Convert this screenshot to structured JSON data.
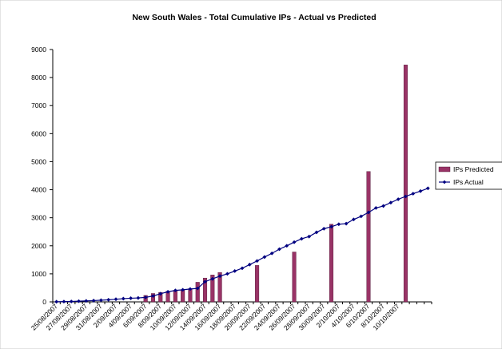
{
  "chart_data": {
    "type": "bar",
    "title": "New South Wales - Total Cumulative IPs - Actual vs Predicted",
    "xlabel": "",
    "ylabel": "",
    "ylim": [
      0,
      9000
    ],
    "yticks": [
      0,
      1000,
      2000,
      3000,
      4000,
      5000,
      6000,
      7000,
      8000,
      9000
    ],
    "grid": false,
    "legend_position": "right",
    "x_start": "25/08/2007",
    "x_labels": [
      "25/08/2007",
      "27/08/2007",
      "29/08/2007",
      "31/08/2007",
      "2/09/2007",
      "4/09/2007",
      "6/09/2007",
      "8/09/2007",
      "10/09/2007",
      "12/09/2007",
      "14/09/2007",
      "16/09/2007",
      "18/09/2007",
      "20/09/2007",
      "22/09/2007",
      "24/09/2007",
      "26/09/2007",
      "28/09/2007",
      "30/09/2007",
      "2/10/2007",
      "4/10/2007",
      "6/10/2007",
      "8/10/2007",
      "10/10/2007"
    ],
    "series": [
      {
        "name": "IPs Predicted",
        "type": "bar",
        "color": "#993366",
        "points": [
          {
            "x": "6/09/2007",
            "y": 230
          },
          {
            "x": "7/09/2007",
            "y": 300
          },
          {
            "x": "8/09/2007",
            "y": 340
          },
          {
            "x": "9/09/2007",
            "y": 380
          },
          {
            "x": "10/09/2007",
            "y": 400
          },
          {
            "x": "11/09/2007",
            "y": 430
          },
          {
            "x": "12/09/2007",
            "y": 470
          },
          {
            "x": "13/09/2007",
            "y": 700
          },
          {
            "x": "14/09/2007",
            "y": 850
          },
          {
            "x": "15/09/2007",
            "y": 960
          },
          {
            "x": "16/09/2007",
            "y": 1050
          },
          {
            "x": "21/09/2007",
            "y": 1300
          },
          {
            "x": "26/09/2007",
            "y": 1780
          },
          {
            "x": "1/10/2007",
            "y": 2770
          },
          {
            "x": "6/10/2007",
            "y": 4650
          },
          {
            "x": "11/10/2007",
            "y": 8450
          }
        ]
      },
      {
        "name": "IPs Actual",
        "type": "line",
        "color": "#000080",
        "points": [
          {
            "x": "25/08/2007",
            "y": 5
          },
          {
            "x": "26/08/2007",
            "y": 10
          },
          {
            "x": "27/08/2007",
            "y": 15
          },
          {
            "x": "28/08/2007",
            "y": 25
          },
          {
            "x": "29/08/2007",
            "y": 35
          },
          {
            "x": "30/08/2007",
            "y": 45
          },
          {
            "x": "31/08/2007",
            "y": 60
          },
          {
            "x": "1/09/2007",
            "y": 75
          },
          {
            "x": "2/09/2007",
            "y": 95
          },
          {
            "x": "3/09/2007",
            "y": 115
          },
          {
            "x": "4/09/2007",
            "y": 130
          },
          {
            "x": "5/09/2007",
            "y": 140
          },
          {
            "x": "6/09/2007",
            "y": 160
          },
          {
            "x": "7/09/2007",
            "y": 210
          },
          {
            "x": "8/09/2007",
            "y": 290
          },
          {
            "x": "9/09/2007",
            "y": 360
          },
          {
            "x": "10/09/2007",
            "y": 410
          },
          {
            "x": "11/09/2007",
            "y": 430
          },
          {
            "x": "12/09/2007",
            "y": 460
          },
          {
            "x": "13/09/2007",
            "y": 480
          },
          {
            "x": "14/09/2007",
            "y": 720
          },
          {
            "x": "15/09/2007",
            "y": 820
          },
          {
            "x": "16/09/2007",
            "y": 920
          },
          {
            "x": "17/09/2007",
            "y": 1000
          },
          {
            "x": "18/09/2007",
            "y": 1100
          },
          {
            "x": "19/09/2007",
            "y": 1200
          },
          {
            "x": "20/09/2007",
            "y": 1330
          },
          {
            "x": "21/09/2007",
            "y": 1460
          },
          {
            "x": "22/09/2007",
            "y": 1600
          },
          {
            "x": "23/09/2007",
            "y": 1730
          },
          {
            "x": "24/09/2007",
            "y": 1880
          },
          {
            "x": "25/09/2007",
            "y": 2000
          },
          {
            "x": "26/09/2007",
            "y": 2130
          },
          {
            "x": "27/09/2007",
            "y": 2250
          },
          {
            "x": "28/09/2007",
            "y": 2330
          },
          {
            "x": "29/09/2007",
            "y": 2480
          },
          {
            "x": "30/09/2007",
            "y": 2610
          },
          {
            "x": "1/10/2007",
            "y": 2680
          },
          {
            "x": "2/10/2007",
            "y": 2770
          },
          {
            "x": "3/10/2007",
            "y": 2790
          },
          {
            "x": "4/10/2007",
            "y": 2940
          },
          {
            "x": "5/10/2007",
            "y": 3050
          },
          {
            "x": "6/10/2007",
            "y": 3190
          },
          {
            "x": "7/10/2007",
            "y": 3350
          },
          {
            "x": "8/10/2007",
            "y": 3420
          },
          {
            "x": "9/10/2007",
            "y": 3540
          },
          {
            "x": "10/10/2007",
            "y": 3660
          },
          {
            "x": "11/10/2007",
            "y": 3760
          },
          {
            "x": "12/10/2007",
            "y": 3860
          },
          {
            "x": "13/10/2007",
            "y": 3950
          },
          {
            "x": "14/10/2007",
            "y": 4050
          }
        ]
      }
    ]
  }
}
